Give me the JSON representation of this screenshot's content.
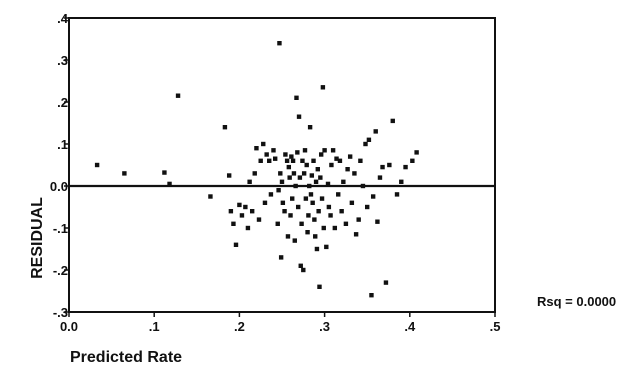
{
  "chart_data": {
    "type": "scatter",
    "title": "",
    "xlabel": "Predicted Rate",
    "ylabel": "RESIDUAL",
    "xlim": [
      0.0,
      0.5
    ],
    "ylim": [
      -0.3,
      0.4
    ],
    "x_ticks": [
      0.0,
      0.1,
      0.2,
      0.3,
      0.4,
      0.5
    ],
    "x_tick_labels": [
      "0.0",
      ".1",
      ".2",
      ".3",
      ".4",
      ".5"
    ],
    "y_ticks": [
      0.4,
      0.3,
      0.2,
      0.1,
      0.0,
      -0.1,
      -0.2,
      -0.3
    ],
    "y_tick_labels": [
      ".4",
      ".3",
      ".2",
      ".1",
      "0.0",
      "-.1",
      "-.2",
      "-.3"
    ],
    "reference_line_y": 0.0,
    "grid": false,
    "legend": "none",
    "annotation": "Rsq = 0.0000",
    "marker_color": "#111111",
    "points": [
      [
        0.033,
        0.05
      ],
      [
        0.065,
        0.03
      ],
      [
        0.112,
        0.032
      ],
      [
        0.118,
        0.005
      ],
      [
        0.128,
        0.215
      ],
      [
        0.166,
        -0.025
      ],
      [
        0.183,
        0.14
      ],
      [
        0.188,
        0.025
      ],
      [
        0.19,
        -0.06
      ],
      [
        0.193,
        -0.09
      ],
      [
        0.196,
        -0.14
      ],
      [
        0.2,
        -0.045
      ],
      [
        0.203,
        -0.07
      ],
      [
        0.207,
        -0.05
      ],
      [
        0.21,
        -0.1
      ],
      [
        0.212,
        0.01
      ],
      [
        0.215,
        -0.06
      ],
      [
        0.218,
        0.03
      ],
      [
        0.22,
        0.09
      ],
      [
        0.223,
        -0.08
      ],
      [
        0.225,
        0.06
      ],
      [
        0.228,
        0.1
      ],
      [
        0.23,
        -0.04
      ],
      [
        0.232,
        0.075
      ],
      [
        0.235,
        0.06
      ],
      [
        0.237,
        -0.02
      ],
      [
        0.24,
        0.085
      ],
      [
        0.242,
        0.065
      ],
      [
        0.245,
        -0.09
      ],
      [
        0.246,
        -0.01
      ],
      [
        0.247,
        0.34
      ],
      [
        0.248,
        0.03
      ],
      [
        0.249,
        -0.17
      ],
      [
        0.25,
        0.01
      ],
      [
        0.251,
        -0.04
      ],
      [
        0.253,
        -0.06
      ],
      [
        0.254,
        0.075
      ],
      [
        0.256,
        0.06
      ],
      [
        0.257,
        -0.12
      ],
      [
        0.258,
        0.045
      ],
      [
        0.259,
        0.02
      ],
      [
        0.26,
        -0.07
      ],
      [
        0.261,
        0.07
      ],
      [
        0.262,
        -0.03
      ],
      [
        0.263,
        0.06
      ],
      [
        0.264,
        0.03
      ],
      [
        0.265,
        -0.13
      ],
      [
        0.266,
        0.0
      ],
      [
        0.267,
        0.21
      ],
      [
        0.268,
        0.08
      ],
      [
        0.269,
        -0.05
      ],
      [
        0.27,
        0.165
      ],
      [
        0.271,
        0.02
      ],
      [
        0.272,
        -0.19
      ],
      [
        0.273,
        -0.09
      ],
      [
        0.274,
        0.06
      ],
      [
        0.275,
        -0.2
      ],
      [
        0.276,
        0.03
      ],
      [
        0.277,
        0.085
      ],
      [
        0.278,
        -0.03
      ],
      [
        0.279,
        0.05
      ],
      [
        0.28,
        -0.11
      ],
      [
        0.281,
        -0.07
      ],
      [
        0.282,
        0.0
      ],
      [
        0.283,
        0.14
      ],
      [
        0.284,
        -0.02
      ],
      [
        0.285,
        0.025
      ],
      [
        0.286,
        -0.04
      ],
      [
        0.287,
        0.06
      ],
      [
        0.288,
        -0.08
      ],
      [
        0.289,
        -0.12
      ],
      [
        0.29,
        0.01
      ],
      [
        0.291,
        -0.15
      ],
      [
        0.292,
        0.04
      ],
      [
        0.293,
        -0.06
      ],
      [
        0.294,
        -0.24
      ],
      [
        0.295,
        0.02
      ],
      [
        0.296,
        0.075
      ],
      [
        0.297,
        -0.03
      ],
      [
        0.298,
        0.235
      ],
      [
        0.299,
        -0.1
      ],
      [
        0.3,
        0.085
      ],
      [
        0.302,
        -0.145
      ],
      [
        0.304,
        0.005
      ],
      [
        0.305,
        -0.05
      ],
      [
        0.307,
        -0.07
      ],
      [
        0.308,
        0.05
      ],
      [
        0.31,
        0.085
      ],
      [
        0.312,
        -0.1
      ],
      [
        0.314,
        0.065
      ],
      [
        0.316,
        -0.02
      ],
      [
        0.318,
        0.06
      ],
      [
        0.32,
        -0.06
      ],
      [
        0.322,
        0.01
      ],
      [
        0.325,
        -0.09
      ],
      [
        0.327,
        0.04
      ],
      [
        0.33,
        0.07
      ],
      [
        0.332,
        -0.04
      ],
      [
        0.335,
        0.03
      ],
      [
        0.337,
        -0.115
      ],
      [
        0.34,
        -0.08
      ],
      [
        0.342,
        0.06
      ],
      [
        0.345,
        0.0
      ],
      [
        0.348,
        0.1
      ],
      [
        0.35,
        -0.05
      ],
      [
        0.352,
        0.11
      ],
      [
        0.355,
        -0.26
      ],
      [
        0.357,
        -0.025
      ],
      [
        0.36,
        0.13
      ],
      [
        0.362,
        -0.085
      ],
      [
        0.365,
        0.02
      ],
      [
        0.368,
        0.045
      ],
      [
        0.372,
        -0.23
      ],
      [
        0.376,
        0.05
      ],
      [
        0.38,
        0.155
      ],
      [
        0.385,
        -0.02
      ],
      [
        0.39,
        0.01
      ],
      [
        0.395,
        0.045
      ],
      [
        0.403,
        0.06
      ],
      [
        0.408,
        0.08
      ]
    ]
  }
}
